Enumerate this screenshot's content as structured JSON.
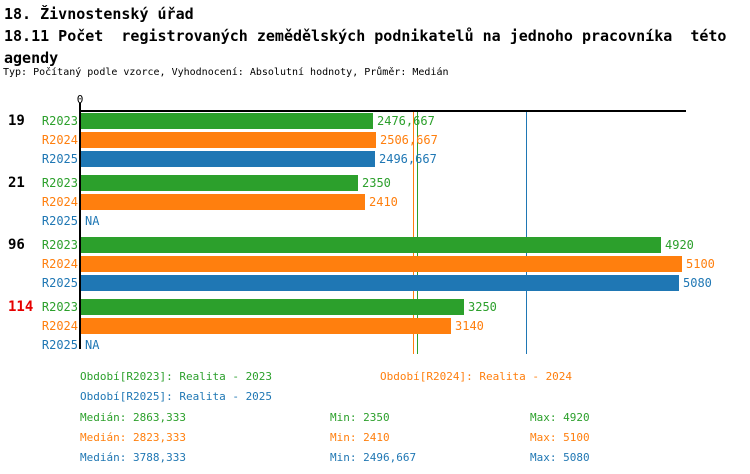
{
  "header": {
    "title_line1": "18. Živnostenský úřad",
    "title_line2": "18.11 Počet  registrovaných zemědělských podnikatelů na jednoho pracovníka  této",
    "title_line3": "agendy",
    "subtitle": "Typ: Počítaný podle vzorce, Vyhodnocení: Absolutní hodnoty, Průměr: Medián"
  },
  "colors": {
    "R2023": "#2ca02c",
    "R2024": "#ff7f0e",
    "R2025": "#1f77b4",
    "group_label_default": "#000000",
    "group_label_alert": "#e60000",
    "axis": "#000000"
  },
  "chart_data": {
    "type": "bar",
    "orientation": "horizontal",
    "axis_zero_label": "0",
    "xlim": [
      0,
      5145
    ],
    "na_text": "NA",
    "series_order": [
      "R2023",
      "R2024",
      "R2025"
    ],
    "groups": [
      {
        "label": "19",
        "alert": false,
        "rows": [
          {
            "series": "R2023",
            "value": 2476.667,
            "display": "2476,667"
          },
          {
            "series": "R2024",
            "value": 2506.667,
            "display": "2506,667"
          },
          {
            "series": "R2025",
            "value": 2496.667,
            "display": "2496,667"
          }
        ]
      },
      {
        "label": "21",
        "alert": false,
        "rows": [
          {
            "series": "R2023",
            "value": 2350,
            "display": "2350"
          },
          {
            "series": "R2024",
            "value": 2410,
            "display": "2410"
          },
          {
            "series": "R2025",
            "value": null,
            "display": "NA"
          }
        ]
      },
      {
        "label": "96",
        "alert": false,
        "rows": [
          {
            "series": "R2023",
            "value": 4920,
            "display": "4920"
          },
          {
            "series": "R2024",
            "value": 5100,
            "display": "5100"
          },
          {
            "series": "R2025",
            "value": 5080,
            "display": "5080"
          }
        ]
      },
      {
        "label": "114",
        "alert": true,
        "rows": [
          {
            "series": "R2023",
            "value": 3250,
            "display": "3250"
          },
          {
            "series": "R2024",
            "value": 3140,
            "display": "3140"
          },
          {
            "series": "R2025",
            "value": null,
            "display": "NA"
          }
        ]
      }
    ],
    "median_lines": [
      {
        "series": "R2023",
        "value": 2863.333
      },
      {
        "series": "R2024",
        "value": 2823.333
      },
      {
        "series": "R2025",
        "value": 3788.333
      }
    ],
    "legend": {
      "period_items": [
        {
          "series": "R2023",
          "text": "Období[R2023]: Realita - 2023",
          "row": 0,
          "col": 0
        },
        {
          "series": "R2024",
          "text": "Období[R2024]: Realita - 2024",
          "row": 0,
          "col": 1
        },
        {
          "series": "R2025",
          "text": "Období[R2025]: Realita - 2025",
          "row": 1,
          "col": 0
        }
      ],
      "stat_labels": {
        "median": "Medián:",
        "min": "Min:",
        "max": "Max:"
      },
      "stats": [
        {
          "series": "R2023",
          "median": "2863,333",
          "min": "2350",
          "max": "4920"
        },
        {
          "series": "R2024",
          "median": "2823,333",
          "min": "2410",
          "max": "5100"
        },
        {
          "series": "R2025",
          "median": "3788,333",
          "min": "2496,667",
          "max": "5080"
        }
      ]
    }
  }
}
